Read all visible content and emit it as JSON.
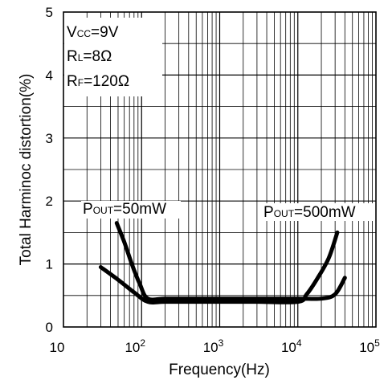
{
  "chart_data": {
    "type": "line",
    "xlabel": "Frequency(Hz)",
    "ylabel": "Total Harminoc distortion(%)",
    "x_scale": "log",
    "xlim": [
      10,
      100000
    ],
    "ylim": [
      0,
      5
    ],
    "grid": true,
    "x_ticks": [
      {
        "value": 10,
        "base": "10",
        "exp": ""
      },
      {
        "value": 100,
        "base": "10",
        "exp": "2"
      },
      {
        "value": 1000,
        "base": "10",
        "exp": "3"
      },
      {
        "value": 10000,
        "base": "10",
        "exp": "4"
      },
      {
        "value": 100000,
        "base": "10",
        "exp": "5"
      }
    ],
    "y_ticks": [
      "0",
      "1",
      "2",
      "3",
      "4",
      "5"
    ],
    "conditions": {
      "vcc": {
        "main": "V",
        "sub": "CC",
        "rest": "=9V"
      },
      "rl": {
        "main": "R",
        "sub": "L",
        "rest": "=8Ω"
      },
      "rf": {
        "main": "R",
        "sub": "F",
        "rest": "=120Ω"
      }
    },
    "series": [
      {
        "name": "POUT=50mW",
        "label": {
          "main": "P",
          "sub": "OUT",
          "rest": "=50mW"
        },
        "x": [
          48,
          60,
          75,
          95,
          120,
          200,
          500,
          1000,
          3000,
          10000,
          20000,
          30000,
          40000
        ],
        "y": [
          1.65,
          1.35,
          1.0,
          0.68,
          0.45,
          0.45,
          0.45,
          0.45,
          0.45,
          0.45,
          0.45,
          0.52,
          0.78
        ]
      },
      {
        "name": "POUT=500mW",
        "label": {
          "main": "P",
          "sub": "OUT",
          "rest": "=500mW"
        },
        "x": [
          30,
          50,
          80,
          120,
          200,
          500,
          1000,
          3000,
          10000,
          13000,
          18000,
          25000,
          32000
        ],
        "y": [
          0.95,
          0.75,
          0.55,
          0.4,
          0.4,
          0.4,
          0.4,
          0.4,
          0.4,
          0.52,
          0.78,
          1.1,
          1.5
        ]
      }
    ]
  }
}
